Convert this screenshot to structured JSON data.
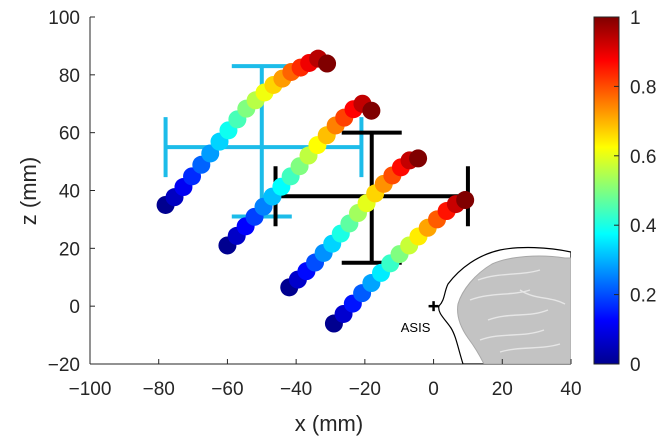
{
  "chart_data": {
    "type": "scatter",
    "xlabel": "x (mm)",
    "ylabel": "z (mm)",
    "xlim": [
      -100,
      40
    ],
    "ylim": [
      -20,
      100
    ],
    "xticks": [
      "−100",
      "−80",
      "−60",
      "−40",
      "−20",
      "0",
      "20",
      "40"
    ],
    "yticks": [
      "−20",
      "0",
      "20",
      "40",
      "60",
      "80",
      "100"
    ],
    "colorbar": {
      "colormap": "jet",
      "range": [
        0,
        1
      ],
      "ticks": [
        "0",
        "0.2",
        "0.4",
        "0.6",
        "0.8",
        "1"
      ]
    },
    "marker_color_values": [
      0,
      0.083,
      0.167,
      0.25,
      0.333,
      0.417,
      0.5,
      0.583,
      0.667,
      0.75,
      0.833,
      0.917,
      1
    ],
    "trajectories": [
      {
        "x": [
          -78,
          -75.4,
          -72.8,
          -70.3,
          -67.6,
          -65.0,
          -62.3,
          -59.7,
          -57.1,
          -54.5,
          -51.8,
          -49.2,
          -46.6,
          -44.0,
          -41.4,
          -38.7,
          -36.2,
          -33.6,
          -31.0
        ],
        "z": [
          35,
          37.7,
          41.2,
          44.9,
          48.9,
          52.8,
          56.9,
          60.8,
          64.6,
          68.3,
          71.2,
          73.9,
          76.5,
          78.7,
          81.0,
          82.5,
          84.1,
          85.6,
          83.9
        ]
      },
      {
        "x": [
          -60,
          -57.3,
          -54.7,
          -52.1,
          -49.5,
          -46.9,
          -44.3,
          -41.6,
          -39.0,
          -36.4,
          -33.8,
          -31.1,
          -28.5,
          -26.0,
          -23.3,
          -20.7,
          -18.1
        ],
        "z": [
          21,
          24.3,
          27.6,
          30.9,
          34.4,
          37.9,
          41.3,
          44.9,
          48.4,
          52.1,
          55.7,
          59.1,
          62.5,
          65.2,
          68.1,
          70.0,
          67.6
        ]
      },
      {
        "x": [
          -42,
          -39.5,
          -37.0,
          -34.5,
          -32.0,
          -29.5,
          -27.0,
          -24.5,
          -22.0,
          -19.5,
          -17.0,
          -14.5,
          -12.0,
          -9.5,
          -7.0,
          -4.5
        ],
        "z": [
          6.5,
          9.2,
          12.1,
          15.1,
          18.4,
          21.6,
          25.1,
          28.6,
          32.2,
          35.6,
          39.0,
          42.3,
          45.2,
          48.0,
          50.4,
          51.1
        ]
      },
      {
        "x": [
          -29,
          -26.2,
          -23.5,
          -20.8,
          -18.1,
          -15.3,
          -12.6,
          -9.9,
          -7.1,
          -4.4,
          -1.7,
          1.0,
          3.8,
          6.5,
          9.2
        ],
        "z": [
          -6,
          -2.7,
          0.9,
          4.5,
          8.0,
          11.5,
          14.8,
          18.0,
          21.0,
          24.1,
          27.1,
          30.0,
          32.9,
          35.3,
          36.7
        ]
      }
    ],
    "error_crosses": [
      {
        "color": "#1cbce9",
        "x_range": [
          -78,
          -21
        ],
        "y_range": [
          31,
          83
        ],
        "h_line_y": 55,
        "v_line_x": -50,
        "x_caps": [
          -78,
          -21
        ],
        "y_caps": [
          -50,
          -50
        ]
      },
      {
        "color": "#000000",
        "x_range": [
          -45,
          10
        ],
        "y_range": [
          15,
          60
        ],
        "h_line_y": 38,
        "v_line_x": -18,
        "x_caps": [
          -46,
          10
        ],
        "y_caps": [
          -18,
          -18
        ]
      }
    ],
    "landmark": {
      "label": "ASIS",
      "x": 0,
      "y": 0
    }
  }
}
